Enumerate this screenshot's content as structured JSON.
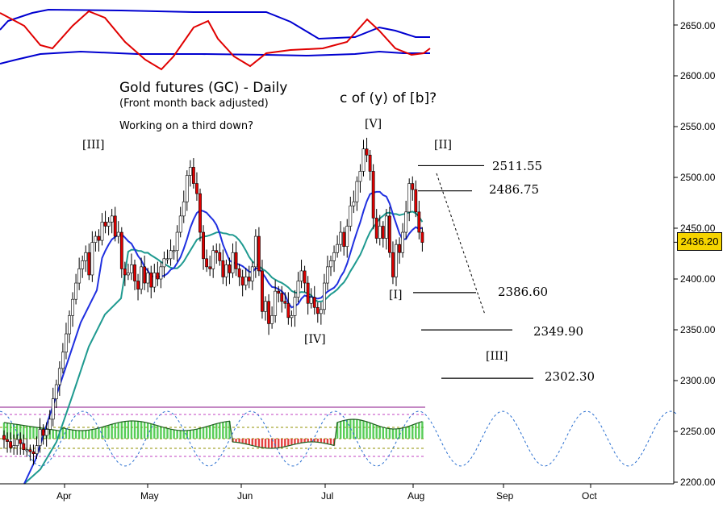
{
  "chart_data": {
    "type": "candlestick",
    "title": "Gold futures (GC) - Daily",
    "subtitle": "(Front month back adjusted)",
    "note": "Working on a third down?",
    "wave_title": "c of (y) of [b]?",
    "current_price": "2436.20",
    "ylim": [
      2200,
      2670
    ],
    "y_ticks": [
      "2650.00",
      "2600.00",
      "2550.00",
      "2500.00",
      "2450.00",
      "2400.00",
      "2350.00",
      "2300.00",
      "2250.00",
      "2200.00"
    ],
    "x_ticks": [
      "Apr",
      "May",
      "Jun",
      "Jul",
      "Aug",
      "Sep",
      "Oct"
    ],
    "levels": [
      {
        "label": "2511.55",
        "value": 2511.55
      },
      {
        "label": "2486.75",
        "value": 2486.75
      },
      {
        "label": "2386.60",
        "value": 2386.6
      },
      {
        "label": "2349.90",
        "value": 2349.9
      },
      {
        "label": "2302.30",
        "value": 2302.3
      }
    ],
    "wave_labels": [
      "[III]",
      "[IV]",
      "[V]",
      "[I]",
      "[II]",
      "[III]"
    ],
    "closes": [
      2242,
      2240,
      2234,
      2236,
      2242,
      2238,
      2232,
      2232,
      2230,
      2228,
      2236,
      2252,
      2246,
      2252,
      2262,
      2282,
      2296,
      2312,
      2328,
      2346,
      2364,
      2380,
      2396,
      2410,
      2418,
      2426,
      2404,
      2436,
      2442,
      2438,
      2456,
      2452,
      2456,
      2462,
      2442,
      2446,
      2410,
      2404,
      2406,
      2414,
      2398,
      2390,
      2412,
      2396,
      2406,
      2392,
      2406,
      2400,
      2412,
      2420,
      2420,
      2428,
      2428,
      2446,
      2462,
      2476,
      2502,
      2510,
      2494,
      2484,
      2446,
      2420,
      2412,
      2410,
      2428,
      2426,
      2418,
      2402,
      2414,
      2406,
      2426,
      2410,
      2402,
      2394,
      2402,
      2398,
      2412,
      2442,
      2408,
      2368,
      2378,
      2356,
      2364,
      2388,
      2386,
      2378,
      2376,
      2362,
      2364,
      2382,
      2398,
      2408,
      2396,
      2376,
      2382,
      2372,
      2366,
      2370,
      2396,
      2412,
      2418,
      2426,
      2434,
      2446,
      2432,
      2452,
      2472,
      2476,
      2496,
      2506,
      2528,
      2522,
      2506,
      2460,
      2440,
      2452,
      2440,
      2462,
      2426,
      2402,
      2434,
      2426,
      2446,
      2466,
      2494,
      2488,
      2466,
      2446,
      2436
    ]
  }
}
